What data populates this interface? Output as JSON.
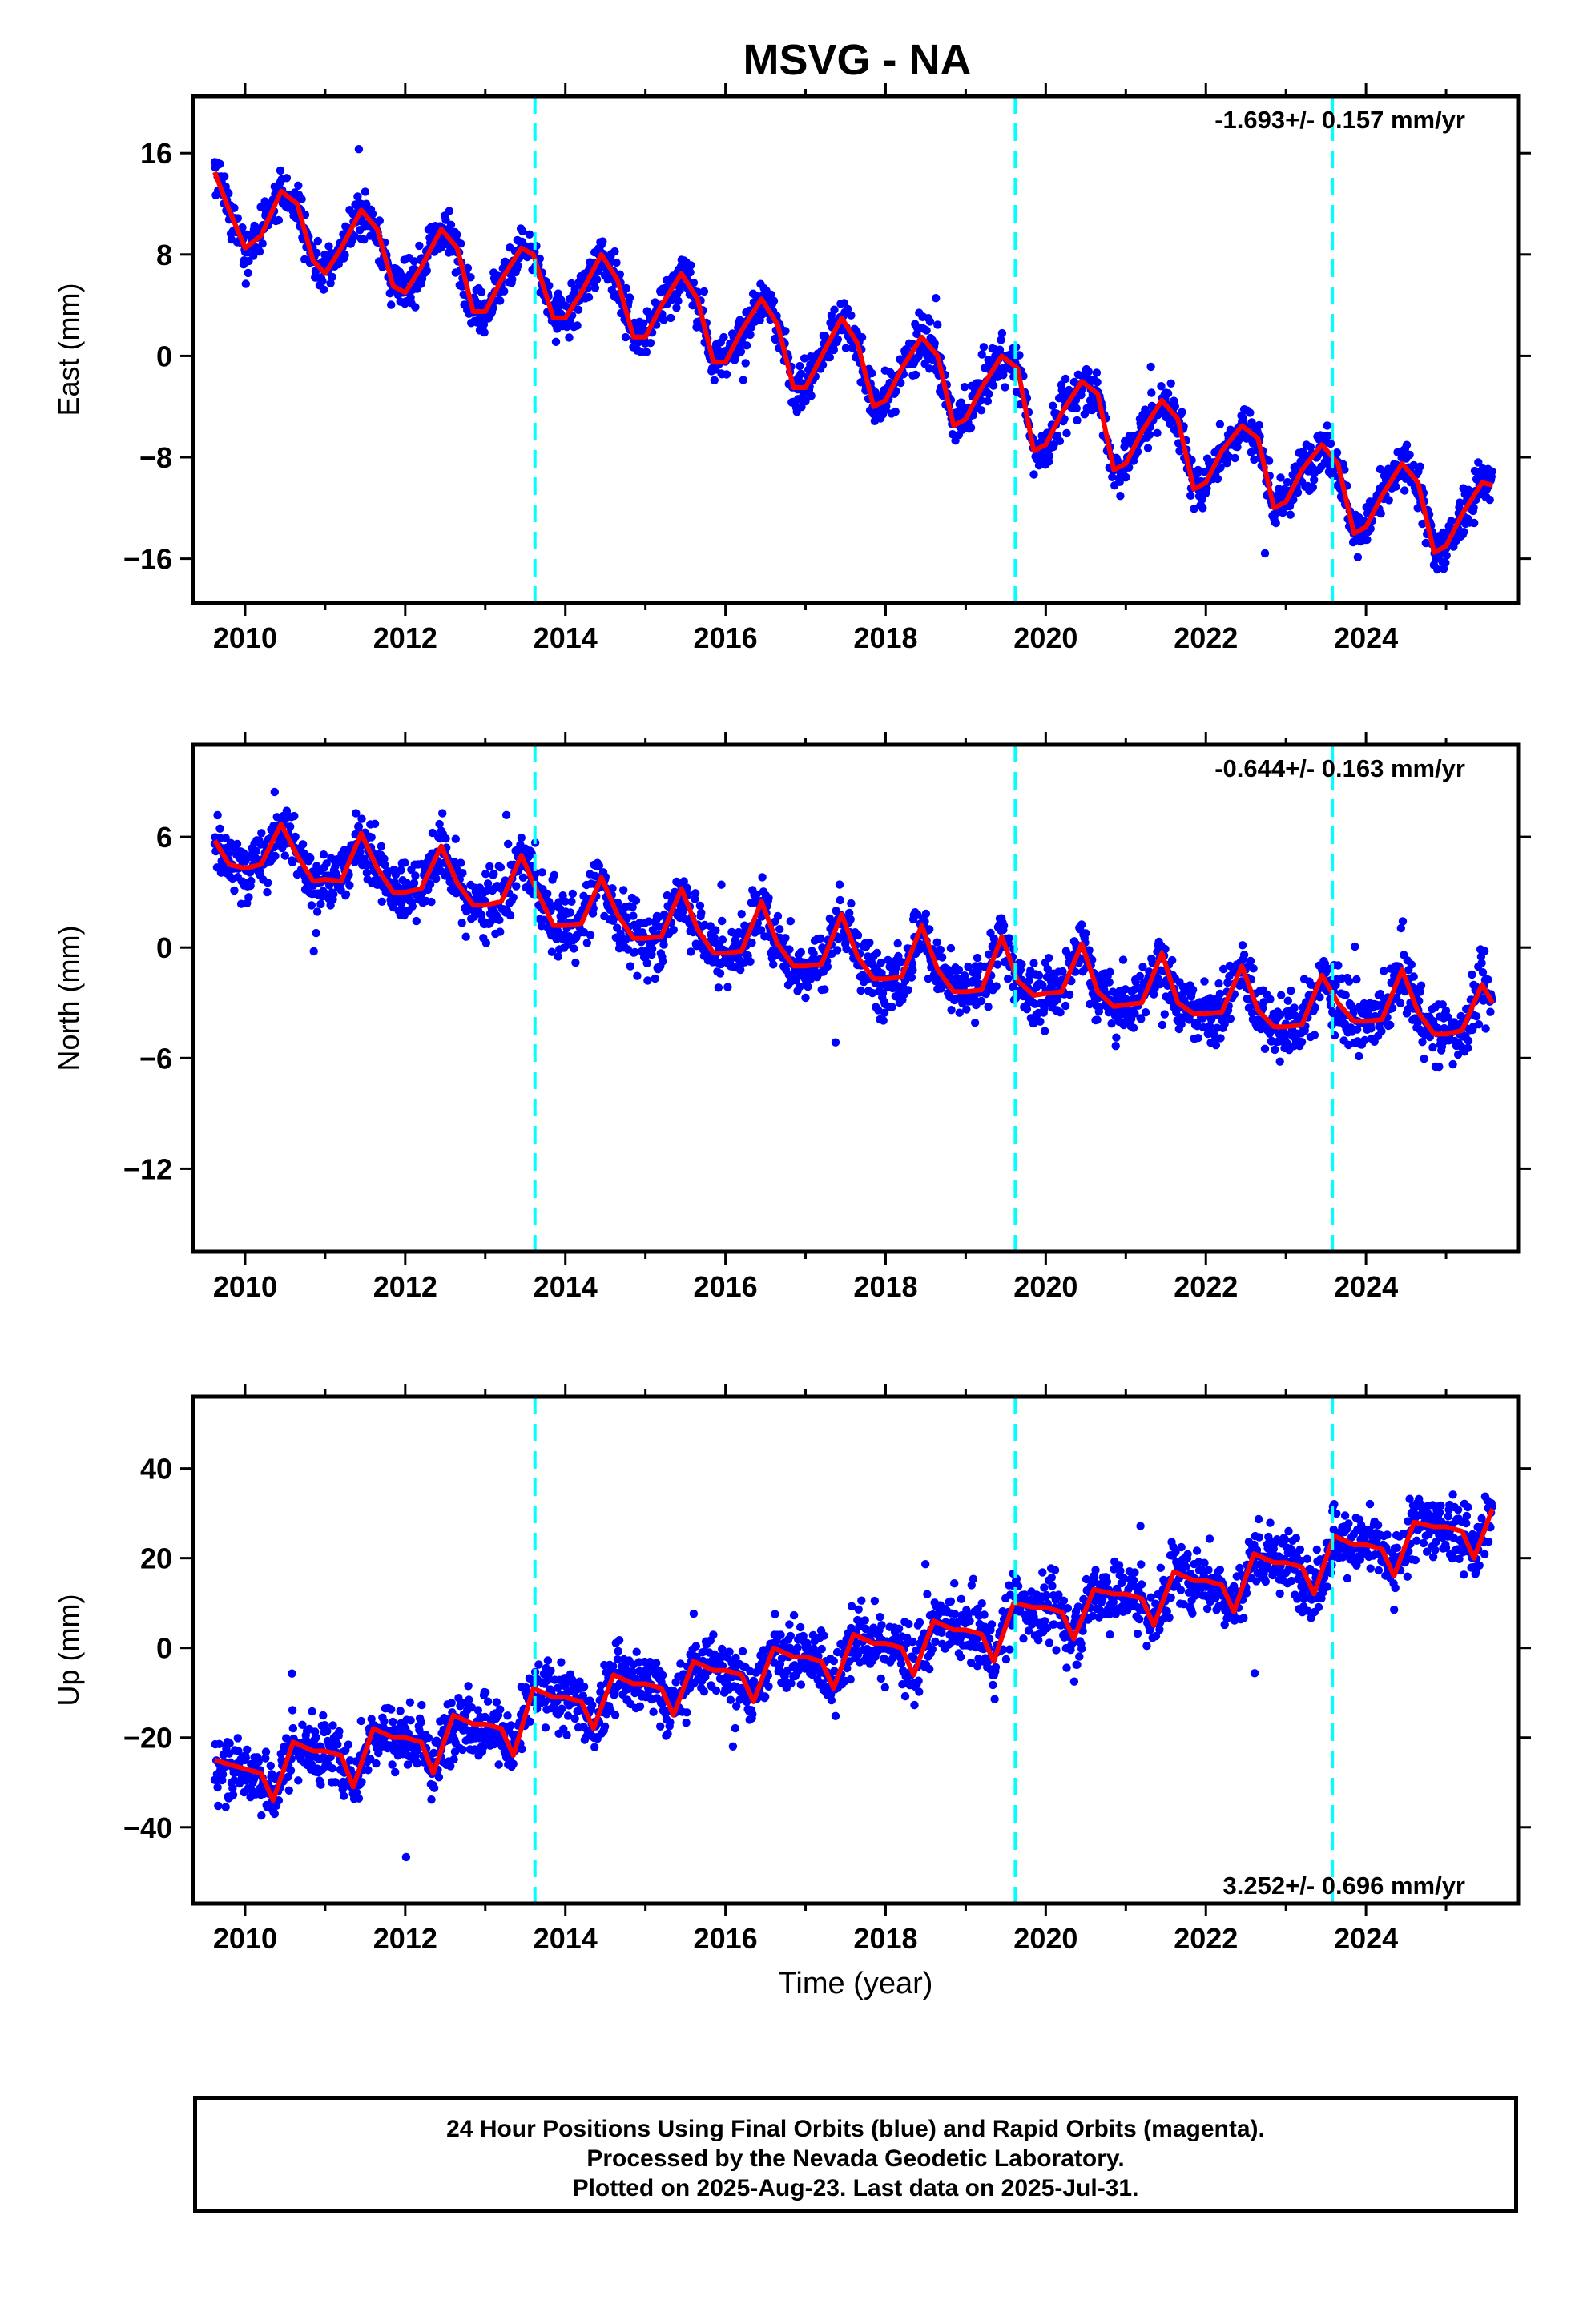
{
  "title": "MSVG - NA",
  "colors": {
    "points": "#0000ff",
    "model": "#ff0000",
    "breaks": "#00ffff",
    "frame": "#000000"
  },
  "chart_data": [
    {
      "type": "scatter",
      "ylabel": "East (mm)",
      "xlabel": "",
      "xlim": [
        2009.35,
        2025.9
      ],
      "ylim": [
        -19.5,
        20.5
      ],
      "yticks": [
        -16,
        -8,
        0,
        8,
        16
      ],
      "xticks": [
        2010,
        2012,
        2014,
        2016,
        2018,
        2020,
        2022,
        2024
      ],
      "rate_annotation": "-1.693+/- 0.157 mm/yr",
      "annotation_position": "top-right",
      "breaks": [
        2013.62,
        2019.62,
        2023.58
      ],
      "model": {
        "x": [
          2009.62,
          2009.8,
          2010.0,
          2010.2,
          2010.45,
          2010.65,
          2010.85,
          2011.0,
          2011.2,
          2011.45,
          2011.65,
          2011.85,
          2012.0,
          2012.2,
          2012.45,
          2012.65,
          2012.85,
          2013.0,
          2013.2,
          2013.45,
          2013.6,
          2013.85,
          2014.0,
          2014.2,
          2014.45,
          2014.65,
          2014.85,
          2015.0,
          2015.2,
          2015.45,
          2015.65,
          2015.85,
          2016.0,
          2016.2,
          2016.45,
          2016.65,
          2016.85,
          2017.0,
          2017.2,
          2017.45,
          2017.65,
          2017.85,
          2018.0,
          2018.2,
          2018.45,
          2018.65,
          2018.85,
          2019.0,
          2019.2,
          2019.45,
          2019.65,
          2019.85,
          2020.0,
          2020.2,
          2020.45,
          2020.65,
          2020.85,
          2021.0,
          2021.2,
          2021.45,
          2021.65,
          2021.85,
          2022.0,
          2022.2,
          2022.45,
          2022.65,
          2022.85,
          2023.0,
          2023.2,
          2023.45,
          2023.65,
          2023.85,
          2024.0,
          2024.2,
          2024.45,
          2024.65,
          2024.85,
          2025.0,
          2025.2,
          2025.45,
          2025.58
        ],
        "y": [
          14.5,
          11.5,
          8.5,
          9.5,
          13.0,
          12.0,
          7.5,
          6.5,
          8.5,
          11.5,
          10.0,
          5.5,
          5.0,
          7.0,
          10.0,
          8.5,
          3.5,
          3.5,
          6.0,
          8.5,
          8.0,
          3.0,
          3.0,
          5.0,
          8.0,
          6.0,
          1.5,
          1.5,
          4.0,
          6.5,
          4.5,
          -0.5,
          -0.5,
          2.0,
          4.5,
          2.5,
          -2.5,
          -2.5,
          0.0,
          3.0,
          1.0,
          -4.0,
          -3.5,
          -1.0,
          1.5,
          0.0,
          -5.5,
          -5.0,
          -2.5,
          0.0,
          -1.0,
          -7.5,
          -7.0,
          -4.5,
          -2.0,
          -3.0,
          -9.0,
          -8.5,
          -6.0,
          -3.5,
          -5.0,
          -10.5,
          -10.0,
          -7.5,
          -5.5,
          -6.5,
          -12.0,
          -11.5,
          -9.0,
          -7.0,
          -8.5,
          -14.0,
          -13.5,
          -11.0,
          -8.5,
          -10.0,
          -15.5,
          -15.0,
          -12.5,
          -10.0,
          -10.2
        ]
      }
    },
    {
      "type": "scatter",
      "ylabel": "North (mm)",
      "xlabel": "",
      "xlim": [
        2009.35,
        2025.9
      ],
      "ylim": [
        -16.5,
        11
      ],
      "yticks": [
        -12,
        -6,
        0,
        6
      ],
      "xticks": [
        2010,
        2012,
        2014,
        2016,
        2018,
        2020,
        2022,
        2024
      ],
      "rate_annotation": "-0.644+/- 0.163 mm/yr",
      "annotation_position": "top-right",
      "breaks": [
        2013.62,
        2019.62,
        2023.58
      ],
      "model": {
        "x": [
          2009.62,
          2009.8,
          2010.0,
          2010.2,
          2010.45,
          2010.65,
          2010.85,
          2011.0,
          2011.2,
          2011.45,
          2011.65,
          2011.85,
          2012.0,
          2012.2,
          2012.45,
          2012.65,
          2012.85,
          2013.0,
          2013.2,
          2013.45,
          2013.6,
          2013.85,
          2014.0,
          2014.2,
          2014.45,
          2014.65,
          2014.85,
          2015.0,
          2015.2,
          2015.45,
          2015.65,
          2015.85,
          2016.0,
          2016.2,
          2016.45,
          2016.65,
          2016.85,
          2017.0,
          2017.2,
          2017.45,
          2017.65,
          2017.85,
          2018.0,
          2018.2,
          2018.45,
          2018.65,
          2018.85,
          2019.0,
          2019.2,
          2019.45,
          2019.65,
          2019.85,
          2020.0,
          2020.2,
          2020.45,
          2020.65,
          2020.85,
          2021.0,
          2021.2,
          2021.45,
          2021.65,
          2021.85,
          2022.0,
          2022.2,
          2022.45,
          2022.65,
          2022.85,
          2023.0,
          2023.2,
          2023.45,
          2023.65,
          2023.85,
          2024.0,
          2024.2,
          2024.45,
          2024.65,
          2024.85,
          2025.0,
          2025.2,
          2025.45,
          2025.58
        ],
        "y": [
          5.8,
          4.5,
          4.3,
          4.5,
          6.7,
          5.0,
          3.6,
          3.7,
          3.6,
          6.2,
          4.3,
          3.0,
          3.0,
          3.2,
          5.5,
          3.5,
          2.3,
          2.3,
          2.5,
          5.0,
          3.5,
          1.2,
          1.2,
          1.3,
          3.8,
          1.8,
          0.5,
          0.5,
          0.6,
          3.2,
          1.0,
          -0.3,
          -0.3,
          -0.2,
          2.5,
          0.2,
          -1.0,
          -1.0,
          -0.9,
          1.8,
          -0.5,
          -1.7,
          -1.7,
          -1.6,
          1.2,
          -1.2,
          -2.4,
          -2.4,
          -2.3,
          0.6,
          -1.8,
          -2.6,
          -2.5,
          -2.4,
          0.2,
          -2.4,
          -3.2,
          -3.1,
          -3.0,
          -0.3,
          -3.0,
          -3.6,
          -3.6,
          -3.5,
          -1.0,
          -3.4,
          -4.3,
          -4.3,
          -4.2,
          -1.5,
          -3.0,
          -4.0,
          -4.0,
          -3.9,
          -1.2,
          -3.5,
          -4.7,
          -4.7,
          -4.5,
          -2.0,
          -3.0
        ]
      }
    },
    {
      "type": "scatter",
      "ylabel": "Up (mm)",
      "xlabel": "Time (year)",
      "xlim": [
        2009.35,
        2025.9
      ],
      "ylim": [
        -57,
        56
      ],
      "yticks": [
        -40,
        -20,
        0,
        20,
        40
      ],
      "xticks": [
        2010,
        2012,
        2014,
        2016,
        2018,
        2020,
        2022,
        2024
      ],
      "rate_annotation": "3.252+/- 0.696 mm/yr",
      "annotation_position": "bottom-right",
      "breaks": [
        2013.62,
        2019.62,
        2023.58
      ],
      "model": {
        "x": [
          2009.62,
          2009.8,
          2010.0,
          2010.2,
          2010.35,
          2010.6,
          2010.85,
          2011.0,
          2011.2,
          2011.35,
          2011.6,
          2011.85,
          2012.0,
          2012.2,
          2012.35,
          2012.6,
          2012.85,
          2013.0,
          2013.2,
          2013.35,
          2013.6,
          2013.85,
          2014.0,
          2014.2,
          2014.35,
          2014.6,
          2014.85,
          2015.0,
          2015.2,
          2015.35,
          2015.6,
          2015.85,
          2016.0,
          2016.2,
          2016.35,
          2016.6,
          2016.85,
          2017.0,
          2017.2,
          2017.35,
          2017.6,
          2017.85,
          2018.0,
          2018.2,
          2018.35,
          2018.6,
          2018.85,
          2019.0,
          2019.2,
          2019.35,
          2019.6,
          2019.85,
          2020.0,
          2020.2,
          2020.35,
          2020.6,
          2020.85,
          2021.0,
          2021.2,
          2021.35,
          2021.6,
          2021.85,
          2022.0,
          2022.2,
          2022.35,
          2022.6,
          2022.85,
          2023.0,
          2023.2,
          2023.35,
          2023.6,
          2023.85,
          2024.0,
          2024.2,
          2024.35,
          2024.6,
          2024.85,
          2025.0,
          2025.2,
          2025.35,
          2025.58
        ],
        "y": [
          -25,
          -26,
          -27,
          -28,
          -34,
          -21,
          -23,
          -23,
          -24,
          -31,
          -18,
          -20,
          -20,
          -21,
          -28,
          -15,
          -17,
          -17,
          -18,
          -24,
          -9,
          -11,
          -11,
          -12,
          -18,
          -6,
          -8,
          -8,
          -9,
          -15,
          -3,
          -5,
          -5,
          -6,
          -12,
          0,
          -2,
          -2,
          -3,
          -9,
          3,
          1,
          1,
          0,
          -6,
          6,
          4,
          4,
          3,
          -3,
          10,
          9,
          9,
          8,
          2,
          13,
          12,
          12,
          11,
          5,
          17,
          15,
          15,
          14,
          8,
          21,
          19,
          19,
          18,
          12,
          25,
          23,
          23,
          22,
          16,
          28,
          27,
          27,
          26,
          20,
          31
        ]
      }
    }
  ],
  "footer": {
    "line1": "24 Hour Positions Using Final Orbits (blue) and Rapid Orbits (magenta).",
    "line2": "Processed by the Nevada Geodetic Laboratory.",
    "line3": "Plotted on 2025-Aug-23. Last data on 2025-Jul-31."
  }
}
